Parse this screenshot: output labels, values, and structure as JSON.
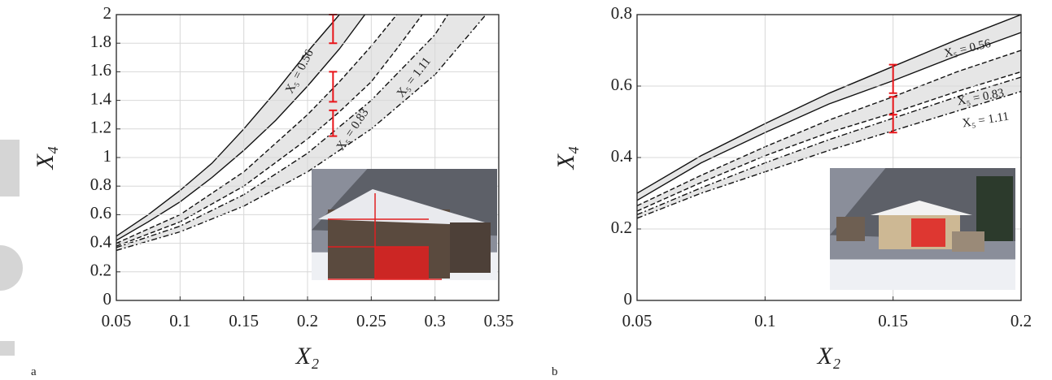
{
  "chart_data": [
    {
      "type": "band-line",
      "panel_label": "a",
      "xlabel": "X₂",
      "ylabel": "X₄",
      "xlim": [
        0.05,
        0.35
      ],
      "ylim": [
        0,
        2
      ],
      "xticks": [
        0.05,
        0.1,
        0.15,
        0.2,
        0.25,
        0.3,
        0.35
      ],
      "yticks": [
        0,
        0.2,
        0.4,
        0.6,
        0.8,
        1,
        1.2,
        1.4,
        1.6,
        1.8,
        2
      ],
      "grid": true,
      "band_color": "#e6e6e6",
      "bands": [
        {
          "label": "X₅ = 0.56",
          "style": "solid",
          "upper": {
            "x": [
              0.05,
              0.075,
              0.1,
              0.125,
              0.15,
              0.175,
              0.2,
              0.225
            ],
            "values": [
              0.45,
              0.6,
              0.77,
              0.96,
              1.2,
              1.46,
              1.74,
              2.0
            ]
          },
          "lower": {
            "x": [
              0.05,
              0.075,
              0.1,
              0.125,
              0.15,
              0.175,
              0.2,
              0.225,
              0.245
            ],
            "values": [
              0.42,
              0.55,
              0.69,
              0.86,
              1.05,
              1.26,
              1.5,
              1.76,
              2.0
            ]
          }
        },
        {
          "label": "X₅ = 0.83",
          "style": "dashed",
          "upper": {
            "x": [
              0.05,
              0.1,
              0.15,
              0.2,
              0.225,
              0.25,
              0.27
            ],
            "values": [
              0.4,
              0.6,
              0.9,
              1.3,
              1.53,
              1.78,
              2.0
            ]
          },
          "lower": {
            "x": [
              0.05,
              0.1,
              0.15,
              0.2,
              0.225,
              0.25,
              0.27,
              0.29
            ],
            "values": [
              0.38,
              0.55,
              0.8,
              1.13,
              1.32,
              1.53,
              1.76,
              2.0
            ]
          }
        },
        {
          "label": "X₅ = 1.11",
          "style": "dashdot",
          "upper": {
            "x": [
              0.05,
              0.1,
              0.15,
              0.2,
              0.25,
              0.3,
              0.31
            ],
            "values": [
              0.37,
              0.52,
              0.74,
              1.03,
              1.4,
              1.86,
              2.0
            ]
          },
          "lower": {
            "x": [
              0.05,
              0.1,
              0.15,
              0.2,
              0.25,
              0.3,
              0.34
            ],
            "values": [
              0.35,
              0.48,
              0.66,
              0.9,
              1.2,
              1.58,
              2.0
            ]
          }
        }
      ],
      "error_bars": [
        {
          "x": 0.22,
          "low": 1.8,
          "high": 2.0
        },
        {
          "x": 0.22,
          "low": 1.39,
          "high": 1.6
        },
        {
          "x": 0.22,
          "low": 1.15,
          "high": 1.33
        }
      ]
    },
    {
      "type": "band-line",
      "panel_label": "b",
      "xlabel": "X₂",
      "ylabel": "X₄",
      "xlim": [
        0.05,
        0.2
      ],
      "ylim": [
        0,
        0.8
      ],
      "xticks": [
        0.05,
        0.1,
        0.15,
        0.2
      ],
      "yticks": [
        0,
        0.2,
        0.4,
        0.6,
        0.8
      ],
      "grid": true,
      "band_color": "#e6e6e6",
      "bands": [
        {
          "label": "X₅ = 0.56",
          "style": "solid",
          "upper": {
            "x": [
              0.05,
              0.075,
              0.1,
              0.125,
              0.15,
              0.175,
              0.2
            ],
            "values": [
              0.3,
              0.405,
              0.495,
              0.58,
              0.655,
              0.73,
              0.8
            ]
          },
          "lower": {
            "x": [
              0.05,
              0.075,
              0.1,
              0.125,
              0.15,
              0.175,
              0.2
            ],
            "values": [
              0.28,
              0.385,
              0.47,
              0.55,
              0.615,
              0.685,
              0.75
            ]
          }
        },
        {
          "label": "X₅ = 0.83",
          "style": "dashed",
          "upper": {
            "x": [
              0.05,
              0.075,
              0.1,
              0.125,
              0.15,
              0.175,
              0.2
            ],
            "values": [
              0.265,
              0.35,
              0.43,
              0.505,
              0.57,
              0.64,
              0.7
            ]
          },
          "lower": {
            "x": [
              0.05,
              0.075,
              0.1,
              0.125,
              0.15,
              0.175,
              0.2
            ],
            "values": [
              0.25,
              0.33,
              0.405,
              0.47,
              0.525,
              0.585,
              0.64
            ]
          }
        },
        {
          "label": "X₅ = 1.11",
          "style": "dashdot",
          "upper": {
            "x": [
              0.05,
              0.075,
              0.1,
              0.125,
              0.15,
              0.175,
              0.2
            ],
            "values": [
              0.24,
              0.315,
              0.385,
              0.45,
              0.51,
              0.57,
              0.625
            ]
          },
          "lower": {
            "x": [
              0.05,
              0.075,
              0.1,
              0.125,
              0.15,
              0.175,
              0.2
            ],
            "values": [
              0.23,
              0.3,
              0.36,
              0.42,
              0.475,
              0.53,
              0.585
            ]
          }
        }
      ],
      "error_bars": [
        {
          "x": 0.15,
          "low": 0.58,
          "high": 0.66
        },
        {
          "x": 0.15,
          "low": 0.52,
          "high": 0.57
        },
        {
          "x": 0.15,
          "low": 0.47,
          "high": 0.52
        }
      ]
    }
  ]
}
